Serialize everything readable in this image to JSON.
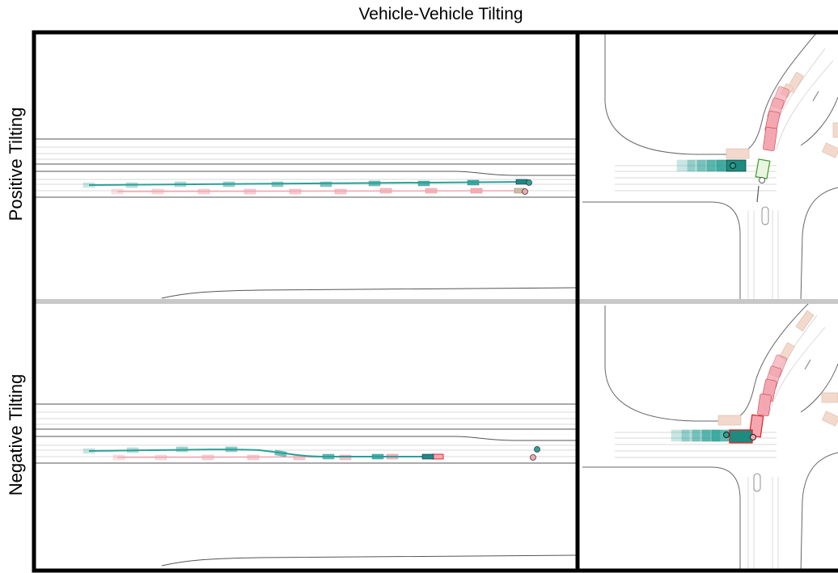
{
  "figure": {
    "title": "Vehicle-Vehicle Tilting",
    "rows": [
      {
        "label": "Positive Tilting"
      },
      {
        "label": "Negative Tilting"
      }
    ]
  },
  "colors": {
    "ego": "#2aa198",
    "ego_dark": "#1f8a7f",
    "other": "#f4a7b0",
    "other_dark": "#e05c6e",
    "collision_outline": "#e02020",
    "green_outline": "#3a9a2a",
    "background_vehicle": "#f3d9cc",
    "lane": "#333333",
    "lane_light": "#bdbdbd",
    "separator": "#c8c8c8",
    "frame": "#000000"
  }
}
